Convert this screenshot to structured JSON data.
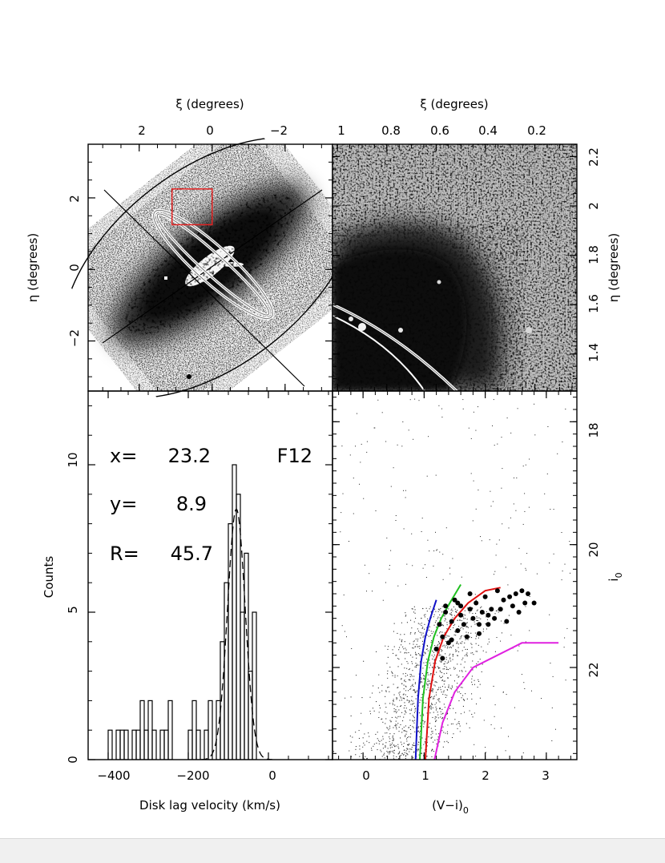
{
  "panels": {
    "top_left": {
      "xlabel": "ξ (degrees)",
      "ylabel": "η (degrees)",
      "xticks": [
        "2",
        "0",
        "−2"
      ],
      "yticks": [
        "2",
        "0",
        "−2"
      ]
    },
    "top_right": {
      "xlabel": "ξ (degrees)",
      "ylabel": "η (degrees)",
      "xticks": [
        "1",
        "0.8",
        "0.6",
        "0.4",
        "0.2"
      ],
      "yticks": [
        "2.2",
        "2",
        "1.8",
        "1.6",
        "1.4"
      ]
    },
    "bottom_left": {
      "xlabel": "Disk lag velocity (km/s)",
      "ylabel": "Counts",
      "xticks": [
        "−400",
        "−200",
        "0"
      ],
      "yticks": [
        "0",
        "5",
        "10"
      ],
      "annotations": {
        "x_label": "x=",
        "x_value": "23.2",
        "y_label": "y=",
        "y_value": "8.9",
        "r_label": "R=",
        "r_value": "45.7",
        "field": "F12"
      }
    },
    "bottom_right": {
      "xlabel_main": "(V−i)",
      "xlabel_sub": "0",
      "ylabel_main": "i",
      "ylabel_sub": "0",
      "xticks": [
        "0",
        "1",
        "2",
        "3"
      ],
      "yticks": [
        "18",
        "20",
        "22"
      ]
    }
  },
  "chart_data": [
    {
      "type": "heatmap",
      "panel": "top_left",
      "xlabel": "ξ (degrees)",
      "ylabel": "η (degrees)",
      "xlim": [
        3.4,
        -3.3
      ],
      "ylim": [
        -3.4,
        3.5
      ],
      "highlight_box": {
        "xi": [
          1.1,
          0.0
        ],
        "eta": [
          1.25,
          2.25
        ],
        "color": "#e02020"
      }
    },
    {
      "type": "heatmap",
      "panel": "top_right",
      "xlabel": "ξ (degrees)",
      "ylabel": "η (degrees)",
      "xlim": [
        1.02,
        0.03
      ],
      "ylim": [
        1.25,
        2.25
      ]
    },
    {
      "type": "bar",
      "panel": "bottom_left",
      "xlabel": "Disk lag velocity (km/s)",
      "ylabel": "Counts",
      "xlim": [
        -450,
        160
      ],
      "ylim": [
        0,
        12.5
      ],
      "bin_width": 10,
      "bins_left": [
        -400,
        -390,
        -380,
        -370,
        -360,
        -350,
        -340,
        -330,
        -320,
        -310,
        -300,
        -290,
        -280,
        -270,
        -260,
        -250,
        -240,
        -230,
        -220,
        -210,
        -200,
        -190,
        -180,
        -170,
        -160,
        -150,
        -140,
        -130,
        -120,
        -110,
        -100,
        -90,
        -80,
        -70,
        -60,
        -50,
        -40,
        -30,
        -20,
        -10
      ],
      "counts": [
        1,
        0,
        1,
        1,
        1,
        0,
        1,
        1,
        2,
        1,
        2,
        1,
        0,
        1,
        1,
        2,
        0,
        0,
        0,
        0,
        1,
        2,
        1,
        0,
        1,
        2,
        0,
        2,
        4,
        6,
        8,
        10,
        9,
        5,
        7,
        3,
        5,
        0,
        0,
        0
      ],
      "fit": {
        "type": "gaussian",
        "amplitude": 8.5,
        "mean": -80,
        "sigma": 22,
        "style": "dashed"
      }
    },
    {
      "type": "scatter",
      "panel": "bottom_right",
      "xlabel": "(V−i)0",
      "ylabel": "i0",
      "xlim": [
        -0.5,
        3.5
      ],
      "ylim": [
        23.5,
        17.5
      ],
      "highlighted_points": [
        [
          1.25,
          21.3
        ],
        [
          1.3,
          21.5
        ],
        [
          1.35,
          21.1
        ],
        [
          1.4,
          21.6
        ],
        [
          1.45,
          21.25
        ],
        [
          1.5,
          20.9
        ],
        [
          1.55,
          21.4
        ],
        [
          1.6,
          21.0
        ],
        [
          1.65,
          21.3
        ],
        [
          1.7,
          21.5
        ],
        [
          1.75,
          20.8
        ],
        [
          1.8,
          21.2
        ],
        [
          1.85,
          20.95
        ],
        [
          1.9,
          21.45
        ],
        [
          1.95,
          21.1
        ],
        [
          2.0,
          20.85
        ],
        [
          2.05,
          21.3
        ],
        [
          2.1,
          21.05
        ],
        [
          2.15,
          21.2
        ],
        [
          2.2,
          20.75
        ],
        [
          2.25,
          21.05
        ],
        [
          2.3,
          20.9
        ],
        [
          2.35,
          21.25
        ],
        [
          2.4,
          20.85
        ],
        [
          2.45,
          21.0
        ],
        [
          2.5,
          20.8
        ],
        [
          2.55,
          21.1
        ],
        [
          2.6,
          20.75
        ],
        [
          2.65,
          20.95
        ],
        [
          2.7,
          20.8
        ],
        [
          2.8,
          20.95
        ],
        [
          1.2,
          21.7
        ],
        [
          1.35,
          21.0
        ],
        [
          1.55,
          20.95
        ],
        [
          1.75,
          21.05
        ],
        [
          1.9,
          21.3
        ],
        [
          2.05,
          21.15
        ],
        [
          1.3,
          21.85
        ],
        [
          1.6,
          21.15
        ],
        [
          1.45,
          21.55
        ]
      ],
      "tracks": [
        {
          "color": "#1010c8",
          "points": [
            [
              0.86,
              23.5
            ],
            [
              0.9,
              22.5
            ],
            [
              0.95,
              21.9
            ],
            [
              1.02,
              21.5
            ],
            [
              1.1,
              21.2
            ],
            [
              1.2,
              20.9
            ]
          ]
        },
        {
          "color": "#20c020",
          "points": [
            [
              0.93,
              23.5
            ],
            [
              0.98,
              22.5
            ],
            [
              1.06,
              21.9
            ],
            [
              1.16,
              21.5
            ],
            [
              1.28,
              21.2
            ],
            [
              1.42,
              20.95
            ],
            [
              1.6,
              20.65
            ]
          ]
        },
        {
          "color": "#e01010",
          "points": [
            [
              1.02,
              23.5
            ],
            [
              1.08,
              22.5
            ],
            [
              1.18,
              21.9
            ],
            [
              1.32,
              21.5
            ],
            [
              1.5,
              21.2
            ],
            [
              1.72,
              20.95
            ],
            [
              2.0,
              20.75
            ],
            [
              2.25,
              20.7
            ]
          ]
        },
        {
          "color": "#e020e0",
          "points": [
            [
              1.17,
              23.5
            ],
            [
              1.3,
              22.9
            ],
            [
              1.5,
              22.4
            ],
            [
              1.8,
              22.0
            ],
            [
              2.2,
              21.8
            ],
            [
              2.6,
              21.6
            ],
            [
              3.2,
              21.6
            ]
          ]
        }
      ]
    }
  ]
}
